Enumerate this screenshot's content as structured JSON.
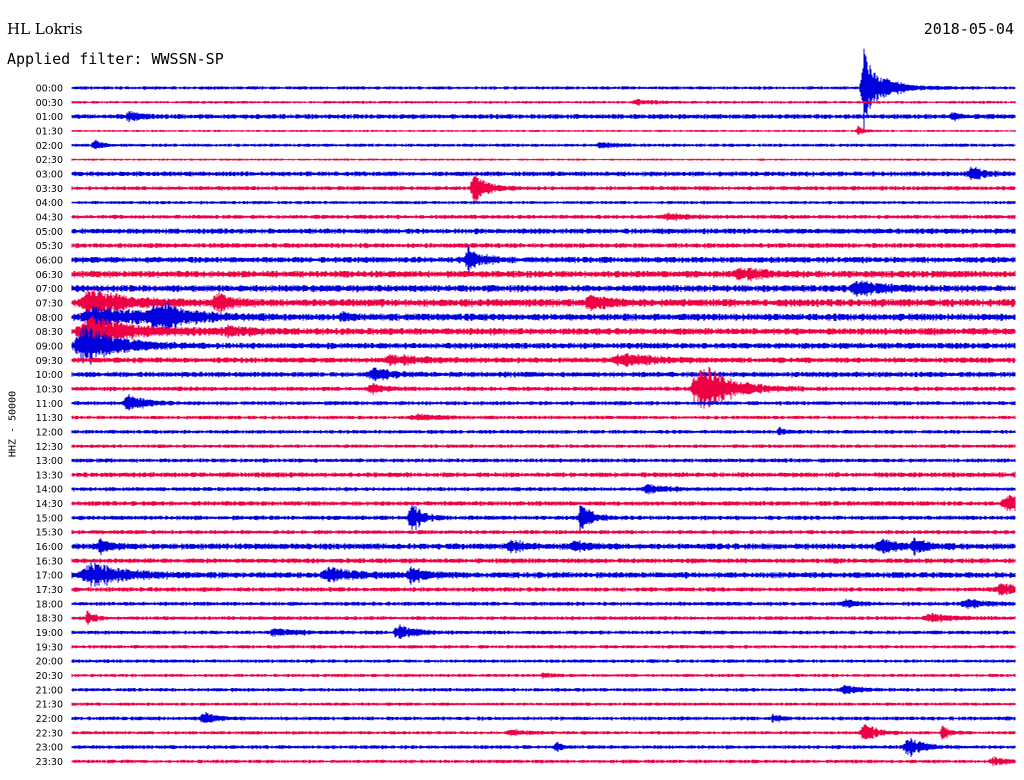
{
  "header": {
    "station": "HL Lokris",
    "date": "2018-05-04",
    "filter": "Applied filter: WWSSN-SP",
    "channel": "HHZ - 50000"
  },
  "colors": {
    "blue": "#0000dd",
    "red": "#ee0044"
  },
  "chart_data": {
    "type": "helicorder",
    "row_labels": [
      "00:00",
      "00:30",
      "01:00",
      "01:30",
      "02:00",
      "02:30",
      "03:00",
      "03:30",
      "04:00",
      "04:30",
      "05:00",
      "05:30",
      "06:00",
      "06:30",
      "07:00",
      "07:30",
      "08:00",
      "08:30",
      "09:00",
      "09:30",
      "10:00",
      "10:30",
      "11:00",
      "11:30",
      "12:00",
      "12:30",
      "13:00",
      "13:30",
      "14:00",
      "14:30",
      "15:00",
      "15:30",
      "16:00",
      "16:30",
      "17:00",
      "17:30",
      "18:00",
      "18:30",
      "19:00",
      "19:30",
      "20:00",
      "20:30",
      "21:00",
      "21:30",
      "22:00",
      "22:30",
      "23:00",
      "23:30"
    ],
    "noise": [
      1.2,
      1.0,
      1.8,
      0.8,
      1.2,
      0.8,
      1.8,
      1.5,
      1.2,
      1.5,
      2.0,
      1.8,
      2.2,
      2.5,
      2.5,
      2.8,
      2.6,
      2.5,
      2.2,
      2.0,
      2.0,
      1.6,
      1.5,
      1.3,
      1.4,
      1.3,
      1.5,
      1.8,
      1.5,
      1.7,
      1.6,
      1.5,
      2.2,
      1.8,
      2.2,
      1.6,
      1.5,
      1.4,
      1.4,
      1.3,
      1.3,
      1.2,
      1.3,
      1.2,
      1.4,
      1.2,
      1.4,
      1.3
    ],
    "events": [
      {
        "row": 0,
        "min": 25.2,
        "amp": 40,
        "width": 0.6
      },
      {
        "row": 0,
        "min": 26.0,
        "amp": 4,
        "width": 1.5
      },
      {
        "row": 1,
        "min": 18.0,
        "amp": 3,
        "width": 0.8
      },
      {
        "row": 2,
        "min": 1.8,
        "amp": 5,
        "width": 0.5
      },
      {
        "row": 2,
        "min": 28.0,
        "amp": 3,
        "width": 0.4
      },
      {
        "row": 3,
        "min": 25.0,
        "amp": 5,
        "width": 0.3
      },
      {
        "row": 4,
        "min": 0.7,
        "amp": 6,
        "width": 0.4
      },
      {
        "row": 4,
        "min": 16.8,
        "amp": 3,
        "width": 0.7
      },
      {
        "row": 6,
        "min": 28.6,
        "amp": 8,
        "width": 0.6
      },
      {
        "row": 7,
        "min": 12.8,
        "amp": 16,
        "width": 0.6
      },
      {
        "row": 9,
        "min": 19.0,
        "amp": 3,
        "width": 1.0
      },
      {
        "row": 12,
        "min": 12.6,
        "amp": 14,
        "width": 0.6
      },
      {
        "row": 13,
        "min": 21.3,
        "amp": 6,
        "width": 1.2
      },
      {
        "row": 14,
        "min": 25.0,
        "amp": 7,
        "width": 1.2
      },
      {
        "row": 15,
        "min": 0.6,
        "amp": 14,
        "width": 1.6
      },
      {
        "row": 15,
        "min": 4.6,
        "amp": 9,
        "width": 0.8
      },
      {
        "row": 15,
        "min": 16.5,
        "amp": 6,
        "width": 0.9
      },
      {
        "row": 15,
        "min": 31.6,
        "amp": 14,
        "width": 1.4
      },
      {
        "row": 16,
        "min": 0.8,
        "amp": 10,
        "width": 2.5
      },
      {
        "row": 16,
        "min": 2.7,
        "amp": 9,
        "width": 1.5
      },
      {
        "row": 16,
        "min": 3.0,
        "amp": 5,
        "width": 0.8
      },
      {
        "row": 16,
        "min": 8.6,
        "amp": 5,
        "width": 0.4
      },
      {
        "row": 16,
        "min": 31.6,
        "amp": 8,
        "width": 0.6
      },
      {
        "row": 17,
        "min": 0.6,
        "amp": 14,
        "width": 2.2
      },
      {
        "row": 17,
        "min": 5.0,
        "amp": 4,
        "width": 1.2
      },
      {
        "row": 18,
        "min": 0.4,
        "amp": 20,
        "width": 1.6
      },
      {
        "row": 19,
        "min": 10.2,
        "amp": 5,
        "width": 1.4
      },
      {
        "row": 19,
        "min": 17.5,
        "amp": 6,
        "width": 1.6
      },
      {
        "row": 20,
        "min": 9.6,
        "amp": 7,
        "width": 0.8
      },
      {
        "row": 21,
        "min": 9.5,
        "amp": 6,
        "width": 0.6
      },
      {
        "row": 21,
        "min": 20.0,
        "amp": 28,
        "width": 1.4
      },
      {
        "row": 22,
        "min": 1.8,
        "amp": 9,
        "width": 0.8
      },
      {
        "row": 23,
        "min": 11.0,
        "amp": 3,
        "width": 1.2
      },
      {
        "row": 24,
        "min": 22.5,
        "amp": 4,
        "width": 0.4
      },
      {
        "row": 27,
        "min": 30.2,
        "amp": 8,
        "width": 1.1
      },
      {
        "row": 28,
        "min": 18.3,
        "amp": 5,
        "width": 0.9
      },
      {
        "row": 29,
        "min": 29.8,
        "amp": 8,
        "width": 1.2
      },
      {
        "row": 30,
        "min": 10.8,
        "amp": 16,
        "width": 0.5
      },
      {
        "row": 30,
        "min": 16.2,
        "amp": 16,
        "width": 0.5
      },
      {
        "row": 32,
        "min": 0.9,
        "amp": 6,
        "width": 0.6
      },
      {
        "row": 32,
        "min": 14.0,
        "amp": 6,
        "width": 0.8
      },
      {
        "row": 32,
        "min": 16.0,
        "amp": 5,
        "width": 0.8
      },
      {
        "row": 32,
        "min": 25.8,
        "amp": 6,
        "width": 1.0
      },
      {
        "row": 32,
        "min": 26.8,
        "amp": 7,
        "width": 0.6
      },
      {
        "row": 33,
        "min": 30.8,
        "amp": 4,
        "width": 0.6
      },
      {
        "row": 34,
        "min": 0.6,
        "amp": 12,
        "width": 1.6
      },
      {
        "row": 34,
        "min": 8.2,
        "amp": 7,
        "width": 1.2
      },
      {
        "row": 34,
        "min": 10.8,
        "amp": 7,
        "width": 0.8
      },
      {
        "row": 35,
        "min": 29.6,
        "amp": 6,
        "width": 1.0
      },
      {
        "row": 36,
        "min": 24.6,
        "amp": 4,
        "width": 0.6
      },
      {
        "row": 36,
        "min": 28.5,
        "amp": 4,
        "width": 1.0
      },
      {
        "row": 37,
        "min": 27.3,
        "amp": 4,
        "width": 1.0
      },
      {
        "row": 37,
        "min": 0.5,
        "amp": 9,
        "width": 0.3
      },
      {
        "row": 38,
        "min": 6.5,
        "amp": 4,
        "width": 1.0
      },
      {
        "row": 38,
        "min": 10.4,
        "amp": 7,
        "width": 0.9
      },
      {
        "row": 41,
        "min": 15.0,
        "amp": 2,
        "width": 0.5
      },
      {
        "row": 42,
        "min": 24.6,
        "amp": 4,
        "width": 0.8
      },
      {
        "row": 44,
        "min": 4.2,
        "amp": 6,
        "width": 0.6
      },
      {
        "row": 44,
        "min": 22.3,
        "amp": 4,
        "width": 0.4
      },
      {
        "row": 45,
        "min": 14.0,
        "amp": 3,
        "width": 0.8
      },
      {
        "row": 45,
        "min": 25.2,
        "amp": 10,
        "width": 0.6
      },
      {
        "row": 45,
        "min": 27.7,
        "amp": 7,
        "width": 0.4
      },
      {
        "row": 46,
        "min": 15.4,
        "amp": 5,
        "width": 0.3
      },
      {
        "row": 46,
        "min": 26.6,
        "amp": 10,
        "width": 0.7
      },
      {
        "row": 47,
        "min": 29.3,
        "amp": 4,
        "width": 0.6
      }
    ]
  }
}
